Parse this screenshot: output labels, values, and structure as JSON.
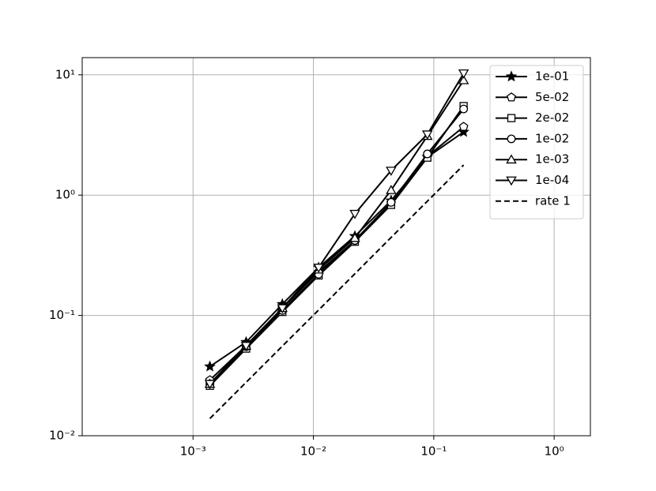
{
  "chart_data": {
    "type": "line",
    "x": [
      0.00138,
      0.00276,
      0.00552,
      0.01105,
      0.0221,
      0.0442,
      0.0884,
      0.177
    ],
    "series": [
      {
        "name": "1e-01",
        "color": "#000000",
        "marker": "star",
        "values": [
          0.0376,
          0.06,
          0.124,
          0.25,
          0.456,
          0.9,
          2.07,
          3.35
        ]
      },
      {
        "name": "5e-02",
        "color": "#000000",
        "marker": "pentagon",
        "values": [
          0.029,
          0.056,
          0.115,
          0.23,
          0.42,
          0.86,
          2.1,
          3.7
        ]
      },
      {
        "name": "2e-02",
        "color": "#000000",
        "marker": "square",
        "values": [
          0.026,
          0.053,
          0.107,
          0.215,
          0.41,
          0.83,
          2.05,
          5.5
        ]
      },
      {
        "name": "1e-02",
        "color": "#000000",
        "marker": "circle",
        "values": [
          0.027,
          0.055,
          0.11,
          0.22,
          0.42,
          0.87,
          2.2,
          5.2
        ]
      },
      {
        "name": "1e-03",
        "color": "#000000",
        "marker": "triangle-up",
        "values": [
          0.027,
          0.056,
          0.115,
          0.24,
          0.44,
          1.1,
          3.1,
          9.0
        ]
      },
      {
        "name": "1e-04",
        "color": "#000000",
        "marker": "triangle-down",
        "values": [
          0.027,
          0.056,
          0.115,
          0.25,
          0.7,
          1.6,
          3.2,
          10.3
        ]
      },
      {
        "name": "rate 1",
        "color": "#000000",
        "linestyle": "dashed",
        "values": [
          0.0139,
          0.0278,
          0.0556,
          0.111,
          0.222,
          0.445,
          0.89,
          1.78
        ]
      }
    ],
    "xscale": "log",
    "yscale": "log",
    "xlim": [
      0.00012,
      2.0
    ],
    "ylim": [
      0.01,
      13.9
    ],
    "xticks": [
      {
        "value": 0.001,
        "label": "10⁻³"
      },
      {
        "value": 0.01,
        "label": "10⁻²"
      },
      {
        "value": 0.1,
        "label": "10⁻¹"
      },
      {
        "value": 1,
        "label": "10⁰"
      }
    ],
    "yticks": [
      {
        "value": 0.01,
        "label": "10⁻²"
      },
      {
        "value": 0.1,
        "label": "10⁻¹"
      },
      {
        "value": 1,
        "label": "10⁰"
      },
      {
        "value": 10,
        "label": "10¹"
      }
    ],
    "grid": true,
    "legend": "upper right"
  }
}
